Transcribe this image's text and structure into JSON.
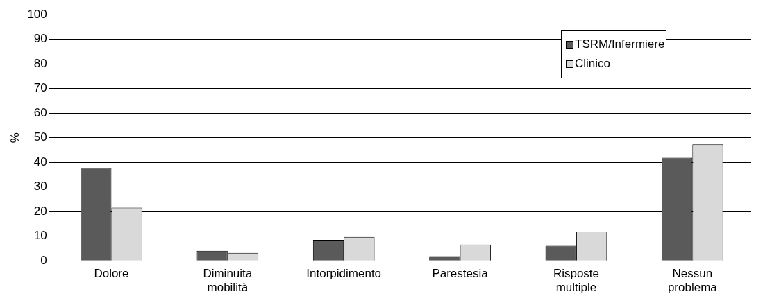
{
  "chart_data": {
    "type": "bar",
    "ylabel": "%",
    "categories": [
      "Dolore",
      "Diminuita mobilità",
      "Intorpidimento",
      "Parestesia",
      "Risposte multiple",
      "Nessun problema"
    ],
    "series": [
      {
        "name": "TSRM/Infermiere",
        "color": "#5a5a5a",
        "values": [
          37.7,
          4.1,
          8.5,
          1.9,
          6.1,
          41.9
        ]
      },
      {
        "name": "Clinico",
        "color": "#d9d9d9",
        "values": [
          21.6,
          3.2,
          9.7,
          6.6,
          11.9,
          47.3
        ]
      }
    ],
    "ylim": [
      0,
      100
    ],
    "yticks": [
      0,
      10,
      20,
      30,
      40,
      50,
      60,
      70,
      80,
      90,
      100
    ],
    "grid": "y",
    "legend": "top right"
  }
}
